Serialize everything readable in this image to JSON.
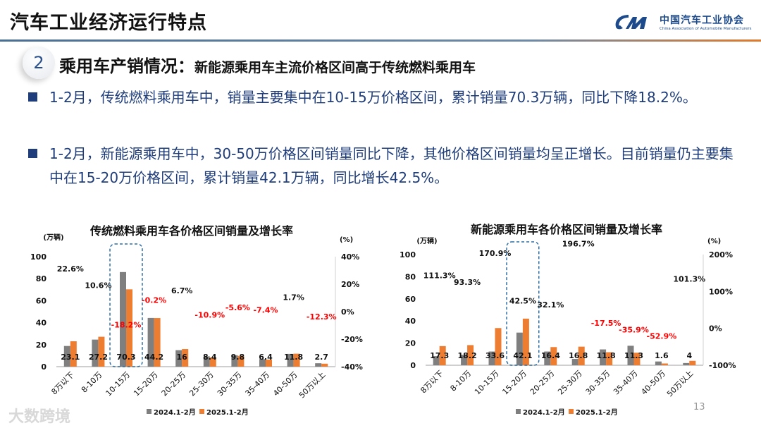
{
  "header": {
    "title": "汽车工业经济运行特点",
    "logo_cn": "中国汽车工业协会",
    "logo_en": "China Association of Automobile Manufacturers"
  },
  "section": {
    "number": "2",
    "heading": "乘用车产销情况：",
    "subheading": "新能源乘用车主流价格区间高于传统燃料乘用车"
  },
  "bullets": [
    "1-2月，传统燃料乘用车中，销量主要集中在10-15万价格区间，累计销量70.3万辆，同比下降18.2%。",
    "1-2月，新能源乘用车中，30-50万价格区间销量同比下降，其他价格区间销量均呈正增长。目前销量仍主要集中在15-20万价格区间，累计销量42.1万辆，同比增长42.5%。"
  ],
  "page_number": "13",
  "watermark": "大数跨境",
  "colors": {
    "series_2024": "#7f7f7f",
    "series_2025": "#ed7d31",
    "negative": "#ff0000",
    "text_blue": "#1f3d7a",
    "highlight": "#2e6da4"
  },
  "chart_data": [
    {
      "type": "bar",
      "title": "传统燃料乘用车各价格区间销量及增长率",
      "ylabel": "(万辆)",
      "y2label": "(%)",
      "ylim": [
        0,
        100
      ],
      "yticks": [
        0,
        20,
        40,
        60,
        80,
        100
      ],
      "y2lim": [
        -40,
        40
      ],
      "y2ticks": [
        "-40%",
        "-20%",
        "0%",
        "20%",
        "40%"
      ],
      "categories": [
        "8万以下",
        "8-10万",
        "10-15万",
        "15-20万",
        "20-25万",
        "25-30万",
        "30-35万",
        "35-40万",
        "40-50万",
        "50万以上"
      ],
      "series": [
        {
          "name": "2024.1-2月",
          "values": [
            18.8,
            24.6,
            86.0,
            44.3,
            15.0,
            9.4,
            10.4,
            6.9,
            11.6,
            3.1
          ]
        },
        {
          "name": "2025.1-2月",
          "values": [
            23.1,
            27.2,
            70.3,
            44.2,
            16.0,
            8.4,
            9.8,
            6.4,
            11.8,
            2.7
          ]
        }
      ],
      "growth_labels": [
        "22.6%",
        "10.6%",
        "-18.2%",
        "-0.2%",
        "6.7%",
        "-10.9%",
        "-5.6%",
        "-7.4%",
        "1.7%",
        "-12.3%"
      ],
      "growth": [
        22.6,
        10.6,
        -18.2,
        -0.2,
        6.7,
        -10.9,
        -5.6,
        -7.4,
        1.7,
        -12.3
      ],
      "highlight_category": "10-15万",
      "legend": "bottom"
    },
    {
      "type": "bar",
      "title": "新能源乘用车各价格区间销量及增长率",
      "ylabel": "(万辆)",
      "y2label": "(%)",
      "ylim": [
        0,
        100
      ],
      "yticks": [
        0,
        20,
        40,
        60,
        80,
        100
      ],
      "y2lim": [
        -100,
        200
      ],
      "y2ticks": [
        "-100%",
        "0%",
        "100%",
        "200%"
      ],
      "categories": [
        "8万以下",
        "8-10万",
        "10-15万",
        "15-20万",
        "20-25万",
        "25-30万",
        "30-35万",
        "35-40万",
        "40-50万",
        "50万以上"
      ],
      "series": [
        {
          "name": "2024.1-2月",
          "values": [
            8.2,
            9.4,
            12.4,
            29.5,
            12.4,
            5.7,
            14.3,
            17.6,
            3.4,
            2.0
          ]
        },
        {
          "name": "2025.1-2月",
          "values": [
            17.3,
            18.2,
            33.6,
            42.1,
            16.4,
            16.8,
            11.8,
            11.3,
            1.6,
            4.0
          ]
        }
      ],
      "growth_labels": [
        "111.3%",
        "93.3%",
        "170.9%",
        "42.5%",
        "32.1%",
        "196.7%",
        "-17.5%",
        "-35.9%",
        "-52.9%",
        "101.3%"
      ],
      "growth": [
        111.3,
        93.3,
        170.9,
        42.5,
        32.1,
        196.7,
        -17.5,
        -35.9,
        -52.9,
        101.3
      ],
      "highlight_category": "15-20万",
      "legend": "bottom"
    }
  ]
}
